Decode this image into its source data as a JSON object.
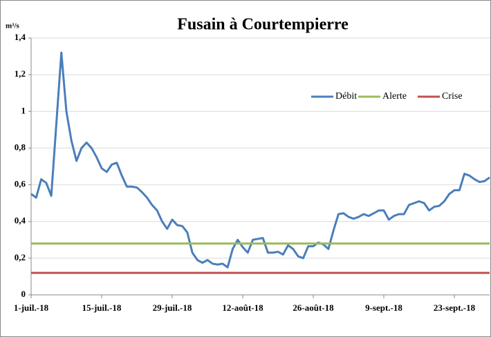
{
  "chart_data": {
    "type": "line",
    "title": "Fusain à Courtempierre",
    "ylabel": "m³/s",
    "categories": [
      "1-juil.-18",
      null,
      null,
      null,
      null,
      null,
      null,
      null,
      null,
      null,
      null,
      null,
      null,
      null,
      "15-juil.-18",
      null,
      null,
      null,
      null,
      null,
      null,
      null,
      null,
      null,
      null,
      null,
      null,
      null,
      "29-juil.-18",
      null,
      null,
      null,
      null,
      null,
      null,
      null,
      null,
      null,
      null,
      null,
      null,
      null,
      "12-août-18",
      null,
      null,
      null,
      null,
      null,
      null,
      null,
      null,
      null,
      null,
      null,
      null,
      null,
      "26-août-18",
      null,
      null,
      null,
      null,
      null,
      null,
      null,
      null,
      null,
      null,
      null,
      null,
      null,
      "9-sept.-18",
      null,
      null,
      null,
      null,
      null,
      null,
      null,
      null,
      null,
      null,
      null,
      null,
      null,
      "23-sept.-18",
      null,
      null,
      null,
      null,
      null,
      null,
      null
    ],
    "series": [
      {
        "name": "Débit",
        "color": "#4a7ebb",
        "values": [
          0.55,
          0.53,
          0.63,
          0.61,
          0.54,
          0.93,
          1.32,
          1.0,
          0.84,
          0.73,
          0.8,
          0.83,
          0.8,
          0.75,
          0.69,
          0.67,
          0.71,
          0.72,
          0.65,
          0.59,
          0.59,
          0.585,
          0.56,
          0.53,
          0.49,
          0.46,
          0.4,
          0.36,
          0.41,
          0.38,
          0.375,
          0.34,
          0.23,
          0.19,
          0.175,
          0.19,
          0.17,
          0.165,
          0.17,
          0.15,
          0.25,
          0.3,
          0.26,
          0.23,
          0.3,
          0.305,
          0.31,
          0.23,
          0.23,
          0.235,
          0.22,
          0.27,
          0.25,
          0.21,
          0.2,
          0.265,
          0.265,
          0.285,
          0.275,
          0.25,
          0.35,
          0.44,
          0.445,
          0.425,
          0.415,
          0.425,
          0.44,
          0.43,
          0.445,
          0.46,
          0.46,
          0.41,
          0.43,
          0.44,
          0.44,
          0.49,
          0.5,
          0.51,
          0.5,
          0.46,
          0.48,
          0.485,
          0.51,
          0.55,
          0.57,
          0.57,
          0.66,
          0.65,
          0.63,
          0.615,
          0.62,
          0.64
        ]
      },
      {
        "name": "Alerte",
        "color": "#9bbb59",
        "values": [
          0.28,
          0.28,
          0.28,
          0.28,
          0.28,
          0.28,
          0.28,
          0.28,
          0.28,
          0.28,
          0.28,
          0.28,
          0.28,
          0.28,
          0.28,
          0.28,
          0.28,
          0.28,
          0.28,
          0.28,
          0.28,
          0.28,
          0.28,
          0.28,
          0.28,
          0.28,
          0.28,
          0.28,
          0.28,
          0.28,
          0.28,
          0.28,
          0.28,
          0.28,
          0.28,
          0.28,
          0.28,
          0.28,
          0.28,
          0.28,
          0.28,
          0.28,
          0.28,
          0.28,
          0.28,
          0.28,
          0.28,
          0.28,
          0.28,
          0.28,
          0.28,
          0.28,
          0.28,
          0.28,
          0.28,
          0.28,
          0.28,
          0.28,
          0.28,
          0.28,
          0.28,
          0.28,
          0.28,
          0.28,
          0.28,
          0.28,
          0.28,
          0.28,
          0.28,
          0.28,
          0.28,
          0.28,
          0.28,
          0.28,
          0.28,
          0.28,
          0.28,
          0.28,
          0.28,
          0.28,
          0.28,
          0.28,
          0.28,
          0.28,
          0.28,
          0.28,
          0.28,
          0.28,
          0.28,
          0.28,
          0.28,
          0.28
        ]
      },
      {
        "name": "Crise",
        "color": "#c0504d",
        "values": [
          0.12,
          0.12,
          0.12,
          0.12,
          0.12,
          0.12,
          0.12,
          0.12,
          0.12,
          0.12,
          0.12,
          0.12,
          0.12,
          0.12,
          0.12,
          0.12,
          0.12,
          0.12,
          0.12,
          0.12,
          0.12,
          0.12,
          0.12,
          0.12,
          0.12,
          0.12,
          0.12,
          0.12,
          0.12,
          0.12,
          0.12,
          0.12,
          0.12,
          0.12,
          0.12,
          0.12,
          0.12,
          0.12,
          0.12,
          0.12,
          0.12,
          0.12,
          0.12,
          0.12,
          0.12,
          0.12,
          0.12,
          0.12,
          0.12,
          0.12,
          0.12,
          0.12,
          0.12,
          0.12,
          0.12,
          0.12,
          0.12,
          0.12,
          0.12,
          0.12,
          0.12,
          0.12,
          0.12,
          0.12,
          0.12,
          0.12,
          0.12,
          0.12,
          0.12,
          0.12,
          0.12,
          0.12,
          0.12,
          0.12,
          0.12,
          0.12,
          0.12,
          0.12,
          0.12,
          0.12,
          0.12,
          0.12,
          0.12,
          0.12,
          0.12,
          0.12,
          0.12,
          0.12,
          0.12,
          0.12,
          0.12,
          0.12
        ]
      }
    ],
    "ylim": [
      0,
      1.4
    ],
    "yticks": [
      0,
      {
        "value": 0.2,
        "label": "0,2"
      },
      {
        "value": 0.4,
        "label": "0,4"
      },
      {
        "value": 0.6,
        "label": "0,6"
      },
      {
        "value": 0.8,
        "label": "0,8"
      },
      1,
      {
        "value": 1.2,
        "label": "1,2"
      },
      {
        "value": 1.4,
        "label": "1,4"
      }
    ],
    "grid": true,
    "legend": "top-right"
  }
}
